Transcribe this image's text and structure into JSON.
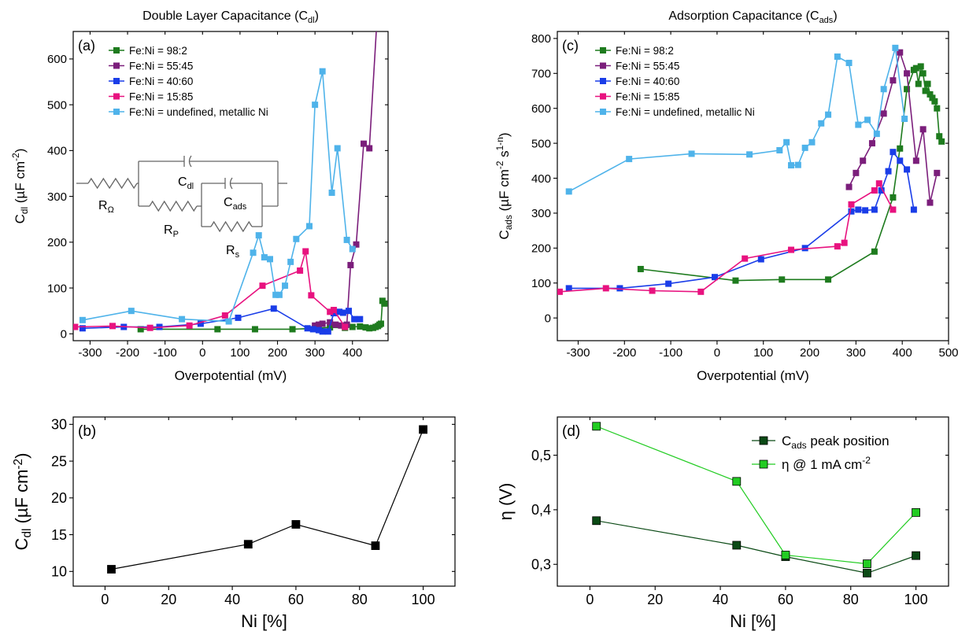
{
  "chart_data": [
    {
      "id": "a",
      "type": "line",
      "panel_label": "(a)",
      "title": "Double Layer Capacitance (C",
      "title_sub": "dl",
      "title_tail": ")",
      "xlabel": "Overpotential (mV)",
      "ylabel": "C",
      "ylabel_sub": "dl",
      "ylabel_tail": " (µF cm",
      "ylabel_sup": "-2",
      "ylabel_end": ")",
      "xlim": [
        -345,
        495
      ],
      "ylim": [
        -15,
        660
      ],
      "xticks": [
        -300,
        -200,
        -100,
        0,
        100,
        200,
        300,
        400
      ],
      "yticks": [
        0,
        100,
        200,
        300,
        400,
        500,
        600
      ],
      "legend_position": "top-left",
      "series": [
        {
          "name": "Fe:Ni = 98:2",
          "color": "#1e7b1e",
          "x": [
            -165,
            40,
            140,
            240,
            300,
            340,
            380,
            400,
            420,
            435,
            445,
            455,
            462,
            468,
            472,
            476,
            480,
            485
          ],
          "y": [
            10,
            10,
            10,
            10,
            12,
            14,
            13,
            15,
            16,
            14,
            12,
            13,
            15,
            17,
            20,
            22,
            72,
            66
          ]
        },
        {
          "name": "Fe:Ni = 55:45",
          "color": "#7b1e7b",
          "x": [
            300,
            310,
            320,
            340,
            355,
            370,
            385,
            395,
            410,
            430,
            445,
            465
          ],
          "y": [
            18,
            20,
            22,
            25,
            20,
            18,
            20,
            150,
            195,
            415,
            405,
            680
          ]
        },
        {
          "name": "Fe:Ni = 40:60",
          "color": "#1a3de8",
          "x": [
            -320,
            -210,
            -115,
            -5,
            95,
            190,
            280,
            295,
            310,
            320,
            335,
            350,
            365,
            375,
            390,
            405,
            420
          ],
          "y": [
            12,
            15,
            15,
            22,
            35,
            55,
            12,
            10,
            8,
            5,
            5,
            45,
            48,
            46,
            50,
            32,
            32
          ]
        },
        {
          "name": "Fe:Ni = 15:85",
          "color": "#e8127f",
          "x": [
            -340,
            -240,
            -140,
            -35,
            60,
            160,
            260,
            275,
            290,
            340,
            350,
            380
          ],
          "y": [
            15,
            17,
            13,
            18,
            40,
            105,
            138,
            180,
            84,
            48,
            52,
            15
          ]
        },
        {
          "name": "Fe:Ni = undefined, metallic Ni",
          "color": "#4fb3ea",
          "x": [
            -320,
            -190,
            -55,
            70,
            135,
            150,
            165,
            180,
            195,
            205,
            220,
            235,
            250,
            285,
            300,
            320,
            345,
            360,
            385,
            400
          ],
          "y": [
            30,
            50,
            32,
            27,
            177,
            215,
            167,
            163,
            85,
            85,
            105,
            157,
            207,
            235,
            500,
            573,
            308,
            405,
            205,
            185
          ]
        }
      ]
    },
    {
      "id": "c",
      "type": "line",
      "panel_label": "(c)",
      "title": "Adsorption Capacitance (C",
      "title_sub": "ads",
      "title_tail": ")",
      "xlabel": "Overpotential (mV)",
      "ylabel": "C",
      "ylabel_sub": "ads",
      "ylabel_tail": " (µF cm",
      "ylabel_sup": "-2",
      "ylabel_mid": " s",
      "ylabel_sup2": "1-n",
      "ylabel_end": ")",
      "xlim": [
        -345,
        500
      ],
      "ylim": [
        -65,
        820
      ],
      "xticks": [
        -300,
        -200,
        -100,
        0,
        100,
        200,
        300,
        400,
        500
      ],
      "yticks": [
        0,
        100,
        200,
        300,
        400,
        500,
        600,
        700,
        800
      ],
      "legend_position": "top-left",
      "series": [
        {
          "name": "Fe:Ni = 98:2",
          "color": "#1e7b1e",
          "x": [
            -165,
            40,
            140,
            240,
            340,
            380,
            395,
            410,
            425,
            430,
            435,
            440,
            445,
            450,
            455,
            460,
            465,
            470,
            475,
            480,
            485
          ],
          "y": [
            140,
            107,
            110,
            110,
            190,
            345,
            485,
            655,
            710,
            715,
            670,
            720,
            700,
            650,
            670,
            640,
            630,
            620,
            600,
            520,
            505
          ]
        },
        {
          "name": "Fe:Ni = 55:45",
          "color": "#7b1e7b",
          "x": [
            285,
            300,
            315,
            335,
            360,
            380,
            395,
            410,
            430,
            445,
            460,
            475
          ],
          "y": [
            375,
            415,
            450,
            500,
            585,
            680,
            760,
            700,
            450,
            540,
            330,
            415
          ]
        },
        {
          "name": "Fe:Ni = 40:60",
          "color": "#1a3de8",
          "x": [
            -320,
            -210,
            -105,
            -5,
            95,
            190,
            290,
            305,
            320,
            340,
            355,
            370,
            380,
            395,
            410,
            425
          ],
          "y": [
            85,
            85,
            98,
            117,
            168,
            200,
            305,
            310,
            308,
            310,
            365,
            420,
            475,
            450,
            425,
            310
          ]
        },
        {
          "name": "Fe:Ni = 15:85",
          "color": "#e8127f",
          "x": [
            -340,
            -240,
            -140,
            -35,
            60,
            160,
            260,
            275,
            290,
            340,
            350,
            380
          ],
          "y": [
            75,
            85,
            78,
            75,
            170,
            195,
            205,
            215,
            325,
            365,
            385,
            310
          ]
        },
        {
          "name": "Fe:Ni = undefined, metallic Ni",
          "color": "#4fb3ea",
          "x": [
            -320,
            -190,
            -55,
            70,
            135,
            150,
            160,
            175,
            190,
            205,
            225,
            240,
            260,
            285,
            305,
            325,
            345,
            360,
            385,
            405
          ],
          "y": [
            362,
            455,
            470,
            468,
            480,
            503,
            437,
            438,
            487,
            503,
            557,
            582,
            748,
            730,
            553,
            567,
            527,
            655,
            773,
            570
          ]
        }
      ]
    },
    {
      "id": "b",
      "type": "line",
      "panel_label": "(b)",
      "title": "",
      "xlabel": "Ni [%]",
      "ylabel": "C",
      "ylabel_sub": "dl",
      "ylabel_tail": " (µF cm",
      "ylabel_sup": "-2",
      "ylabel_end": ")",
      "xlim": [
        -10,
        110
      ],
      "ylim": [
        8,
        31
      ],
      "xticks": [
        0,
        20,
        40,
        60,
        80,
        100
      ],
      "yticks": [
        10,
        15,
        20,
        25,
        30
      ],
      "series": [
        {
          "name": "",
          "color": "#000000",
          "x": [
            2,
            45,
            60,
            85,
            100
          ],
          "y": [
            10.3,
            13.7,
            16.4,
            13.5,
            29.3
          ]
        }
      ]
    },
    {
      "id": "d",
      "type": "line",
      "panel_label": "(d)",
      "title": "",
      "xlabel": "Ni [%]",
      "ylabel": "η (V)",
      "xlim": [
        -10,
        110
      ],
      "ylim": [
        0.26,
        0.57
      ],
      "xticks": [
        0,
        20,
        40,
        60,
        80,
        100
      ],
      "yticks": [
        0.3,
        0.4,
        0.5
      ],
      "ytick_labels": [
        "0,3",
        "0,4",
        "0,5"
      ],
      "legend_position": "top-right",
      "series": [
        {
          "name": "C",
          "name_sub": "ads",
          "name_tail": " peak position",
          "color": "#0b4a15",
          "x": [
            2,
            45,
            60,
            85,
            100
          ],
          "y": [
            0.38,
            0.335,
            0.314,
            0.284,
            0.316
          ]
        },
        {
          "name": "η @ 1 mA cm",
          "name_sup": "-2",
          "color": "#22cc22",
          "x": [
            2,
            45,
            60,
            85,
            100
          ],
          "y": [
            0.553,
            0.452,
            0.317,
            0.301,
            0.395
          ]
        }
      ]
    }
  ],
  "circuit": {
    "r_omega": "R",
    "r_omega_sub": "Ω",
    "cdl": "C",
    "cdl_sub": "dl",
    "rp": "R",
    "rp_sub": "P",
    "cads": "C",
    "cads_sub": "ads",
    "rs": "R",
    "rs_sub": "s"
  }
}
